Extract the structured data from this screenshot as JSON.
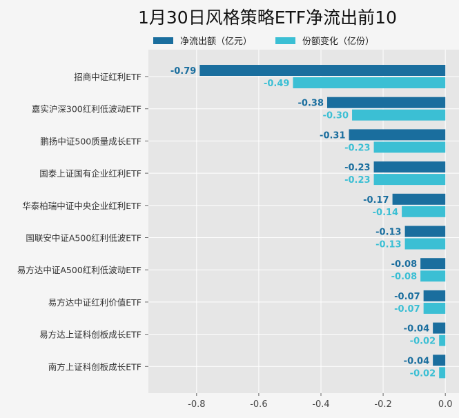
{
  "chart_data": {
    "type": "bar",
    "orientation": "horizontal",
    "title": "1月30日风格策略ETF净流出前10",
    "categories": [
      "招商中证红利ETF",
      "嘉实沪深300红利低波动ETF",
      "鹏扬中证500质量成长ETF",
      "国泰上证国有企业红利ETF",
      "华泰柏瑞中证中央企业红利ETF",
      "国联安中证A500红利低波ETF",
      "易方达中证A500红利低波动ETF",
      "易方达中证红利价值ETF",
      "易方达上证科创板成长ETF",
      "南方上证科创板成长ETF"
    ],
    "series": [
      {
        "name": "净流出额（亿元）",
        "color": "#1a6e9e",
        "values": [
          -0.79,
          -0.38,
          -0.31,
          -0.23,
          -0.17,
          -0.13,
          -0.08,
          -0.07,
          -0.04,
          -0.04
        ]
      },
      {
        "name": "份额变化（亿份）",
        "color": "#3bbfd4",
        "values": [
          -0.49,
          -0.3,
          -0.23,
          -0.23,
          -0.14,
          -0.13,
          -0.08,
          -0.07,
          -0.02,
          -0.02
        ]
      }
    ],
    "xticks": [
      "-0.8",
      "-0.6",
      "-0.4",
      "-0.2",
      "0.0"
    ],
    "xtick_values": [
      -0.8,
      -0.6,
      -0.4,
      -0.2,
      0.0
    ],
    "xlim": [
      -0.955,
      0.044
    ],
    "grid": true,
    "legend": "top"
  }
}
